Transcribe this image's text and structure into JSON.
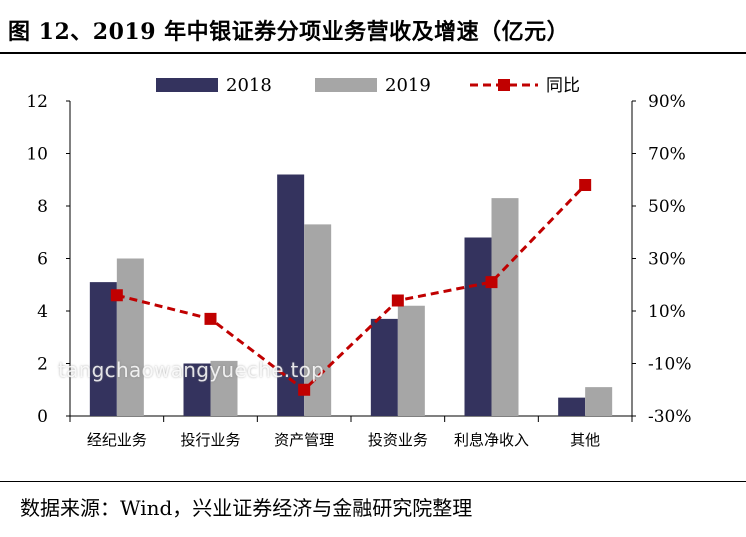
{
  "title": "图 12、2019 年中银证券分项业务营收及增速（亿元）",
  "source": "数据来源：Wind，兴业证券经济与金融研究院整理",
  "watermark": "tangchaowangyueche.top",
  "colors": {
    "bar2018": "#34335e",
    "bar2019": "#a6a6a6",
    "line": "#c00000"
  },
  "chart_data": {
    "type": "bar",
    "categories": [
      "经纪业务",
      "投行业务",
      "资产管理",
      "投资业务",
      "利息净收入",
      "其他"
    ],
    "series": [
      {
        "name": "2018",
        "type": "bar",
        "axis": "left",
        "values": [
          5.1,
          2.0,
          9.2,
          3.7,
          6.8,
          0.7
        ]
      },
      {
        "name": "2019",
        "type": "bar",
        "axis": "left",
        "values": [
          6.0,
          2.1,
          7.3,
          4.2,
          8.3,
          1.1
        ]
      },
      {
        "name": "同比",
        "type": "line",
        "axis": "right",
        "values": [
          0.16,
          0.07,
          -0.2,
          0.14,
          0.21,
          0.58
        ]
      }
    ],
    "ylim": [
      0,
      12
    ],
    "yticks": [
      0,
      2,
      4,
      6,
      8,
      10,
      12
    ],
    "ylim_right": [
      -0.3,
      0.9
    ],
    "yticks_right": [
      -0.3,
      -0.1,
      0.1,
      0.3,
      0.5,
      0.7,
      0.9
    ],
    "ytick_labels_right": [
      "-30%",
      "-10%",
      "10%",
      "30%",
      "50%",
      "70%",
      "90%"
    ],
    "legend_position": "top",
    "grid": false
  }
}
